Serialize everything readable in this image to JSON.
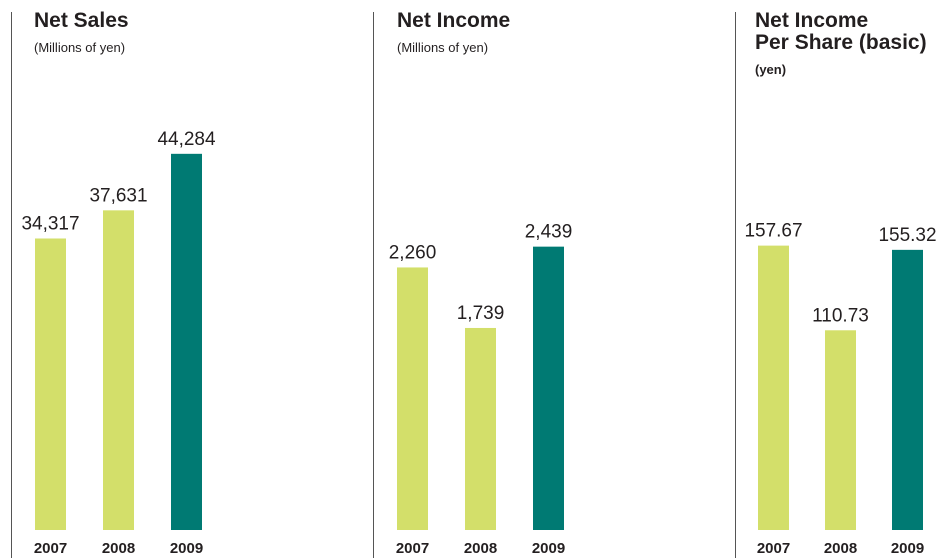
{
  "colors": {
    "bar_prior": "#d3df6a",
    "bar_current": "#007a73",
    "text": "#231f20",
    "divider": "#555555"
  },
  "chart_data": [
    {
      "type": "bar",
      "title": "Net Sales",
      "subtitle": "(Millions of yen)",
      "categories": [
        "2007",
        "2008",
        "2009"
      ],
      "values": [
        34317,
        37631,
        44284
      ],
      "value_labels": [
        "34,317",
        "37,631",
        "44,284"
      ],
      "ylim": [
        0,
        46500
      ]
    },
    {
      "type": "bar",
      "title": "Net Income",
      "subtitle": "(Millions of yen)",
      "categories": [
        "2007",
        "2008",
        "2009"
      ],
      "values": [
        2260,
        1739,
        2439
      ],
      "value_labels": [
        "2,260",
        "1,739",
        "2,439"
      ],
      "ylim": [
        0,
        3400
      ]
    },
    {
      "type": "bar",
      "title": "Net Income\nPer Share (basic)",
      "subtitle": "(yen)",
      "categories": [
        "2007",
        "2008",
        "2009"
      ],
      "values": [
        157.67,
        110.73,
        155.32
      ],
      "value_labels": [
        "157.67",
        "110.73",
        "155.32"
      ],
      "ylim": [
        0,
        219
      ]
    }
  ]
}
